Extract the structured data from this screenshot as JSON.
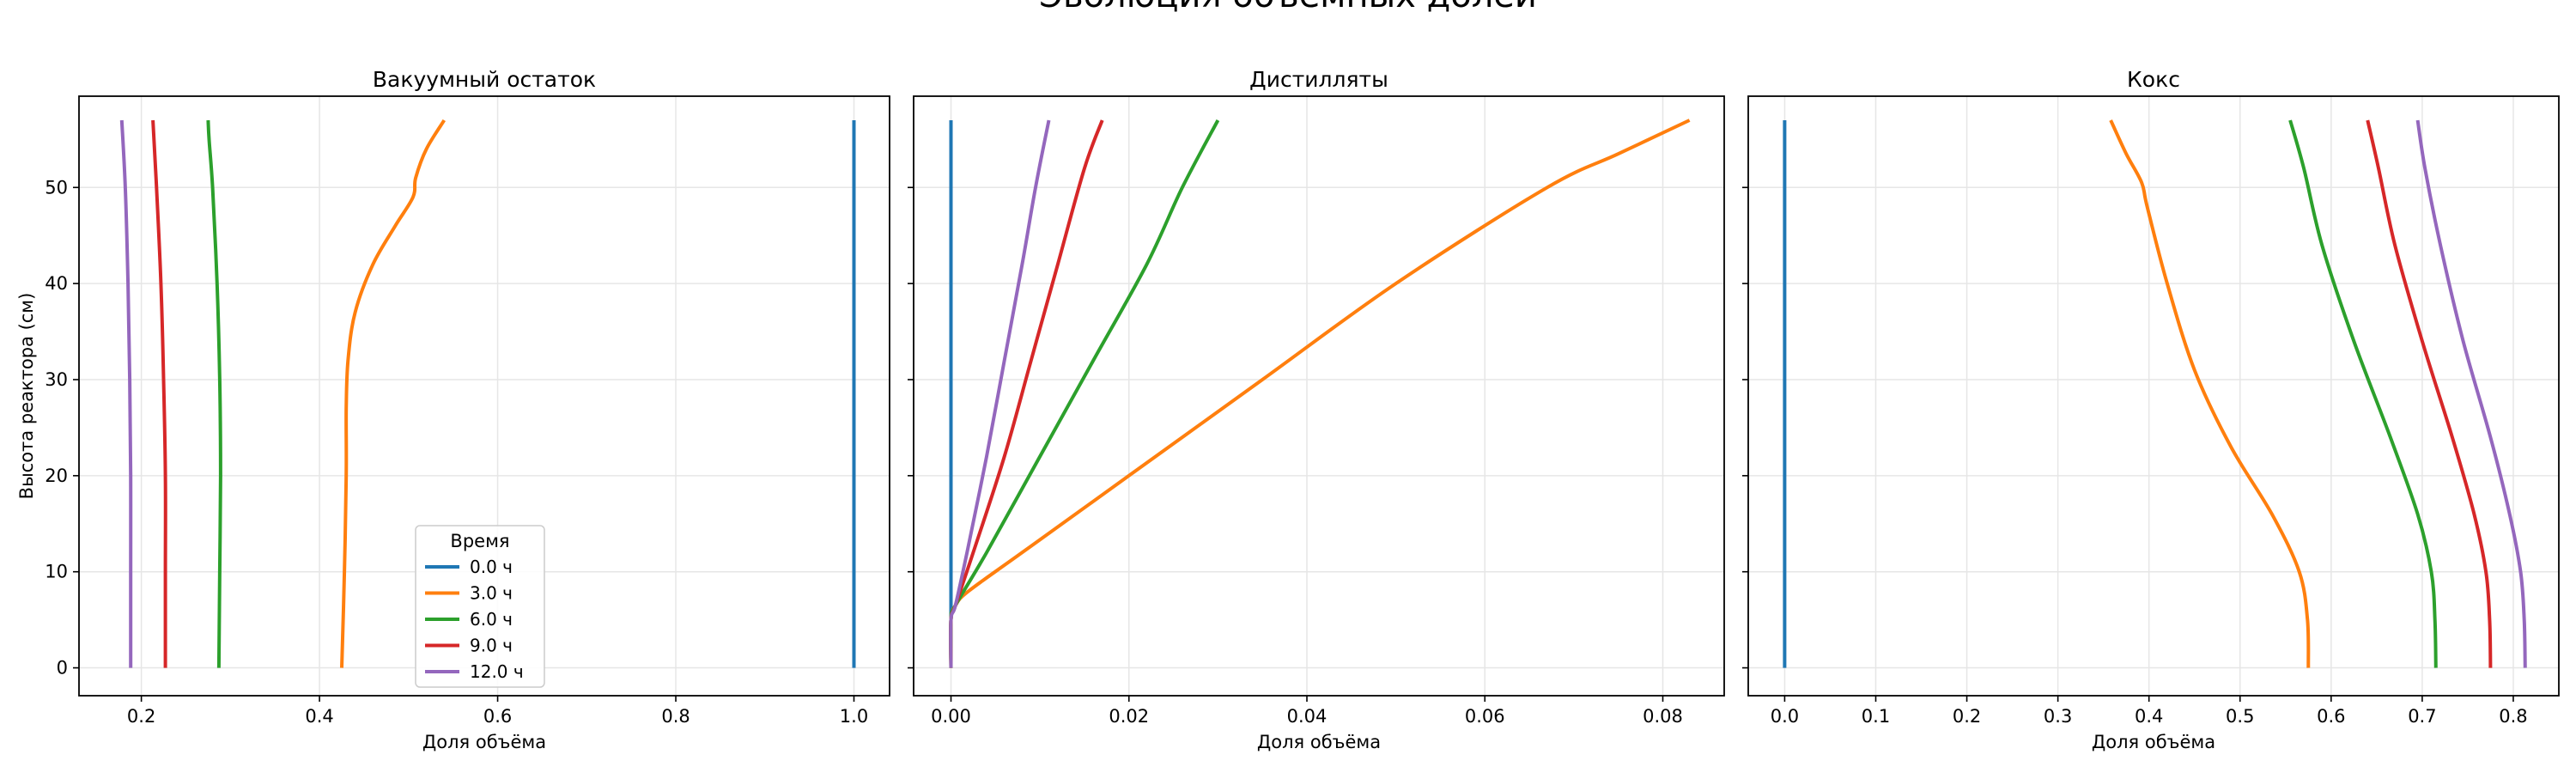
{
  "figure": {
    "title": "Эволюция объёмных долей"
  },
  "legend": {
    "title": "Время",
    "entries": [
      "0.0 ч",
      "3.0 ч",
      "6.0 ч",
      "9.0 ч",
      "12.0 ч"
    ],
    "colors": [
      "#1f77b4",
      "#ff7f0e",
      "#2ca02c",
      "#d62728",
      "#9467bd"
    ],
    "placement": "lower-center of first panel"
  },
  "chart_data": [
    {
      "type": "line",
      "title": "Вакуумный остаток",
      "xlabel": "Доля объёма",
      "ylabel": "Высота реактора (см)",
      "xlim": [
        0.13,
        1.04
      ],
      "ylim": [
        -2.9,
        59.5
      ],
      "xticks": [
        0.2,
        0.4,
        0.6,
        0.8,
        1.0
      ],
      "xtick_labels": [
        "0.2",
        "0.4",
        "0.6",
        "0.8",
        "1.0"
      ],
      "yticks": [
        0,
        10,
        20,
        30,
        40,
        50
      ],
      "ytick_labels": [
        "0",
        "10",
        "20",
        "30",
        "40",
        "50"
      ],
      "grid": true,
      "series": [
        {
          "name": "0.0 ч",
          "x": [
            1.0,
            1.0
          ],
          "y": [
            0,
            57
          ]
        },
        {
          "name": "3.0 ч",
          "x": [
            0.425,
            0.428,
            0.43,
            0.43,
            0.432,
            0.44,
            0.46,
            0.485,
            0.505,
            0.508,
            0.52,
            0.54
          ],
          "y": [
            0,
            10,
            20,
            27,
            32,
            37,
            42,
            46,
            49,
            51,
            54,
            57
          ]
        },
        {
          "name": "6.0 ч",
          "x": [
            0.287,
            0.288,
            0.289,
            0.288,
            0.285,
            0.28,
            0.276,
            0.275
          ],
          "y": [
            0,
            10,
            20,
            30,
            40,
            50,
            55,
            57
          ]
        },
        {
          "name": "9.0 ч",
          "x": [
            0.227,
            0.227,
            0.227,
            0.225,
            0.222,
            0.217,
            0.213
          ],
          "y": [
            0,
            10,
            20,
            30,
            40,
            50,
            57
          ]
        },
        {
          "name": "12.0 ч",
          "x": [
            0.188,
            0.188,
            0.188,
            0.187,
            0.185,
            0.182,
            0.178
          ],
          "y": [
            0,
            10,
            20,
            30,
            40,
            50,
            57
          ]
        }
      ]
    },
    {
      "type": "line",
      "title": "Дистилляты",
      "xlabel": "Доля объёма",
      "ylabel": "",
      "xlim": [
        -0.0042,
        0.0869
      ],
      "ylim": [
        -2.9,
        59.5
      ],
      "xticks": [
        0,
        0.02,
        0.04,
        0.06,
        0.08
      ],
      "xtick_labels": [
        "0.00",
        "0.02",
        "0.04",
        "0.06",
        "0.08"
      ],
      "yticks": [
        0,
        10,
        20,
        30,
        40,
        50
      ],
      "ytick_labels": [],
      "grid": true,
      "series": [
        {
          "name": "0.0 ч",
          "x": [
            0,
            0
          ],
          "y": [
            0,
            57
          ]
        },
        {
          "name": "3.0 ч",
          "x": [
            0,
            0.0,
            0.0005,
            0.002,
            0.008,
            0.02,
            0.035,
            0.05,
            0.067,
            0.075,
            0.083
          ],
          "y": [
            0,
            5,
            6.5,
            8,
            12,
            20,
            30,
            40,
            50,
            53.5,
            57
          ]
        },
        {
          "name": "6.0 ч",
          "x": [
            0,
            0,
            0.0005,
            0.004,
            0.01,
            0.016,
            0.022,
            0.026,
            0.03
          ],
          "y": [
            0,
            5,
            6.5,
            12,
            22,
            32,
            42,
            50,
            57
          ]
        },
        {
          "name": "9.0 ч",
          "x": [
            0,
            0,
            0.0005,
            0.0025,
            0.006,
            0.009,
            0.012,
            0.015,
            0.017
          ],
          "y": [
            0,
            5,
            6.5,
            12,
            22,
            32,
            42,
            52,
            57
          ]
        },
        {
          "name": "12.0 ч",
          "x": [
            0,
            0,
            0.0005,
            0.0018,
            0.004,
            0.006,
            0.008,
            0.0095,
            0.011
          ],
          "y": [
            0,
            5,
            6.5,
            12,
            22,
            32,
            42,
            50,
            57
          ]
        }
      ]
    },
    {
      "type": "line",
      "title": "Кокс",
      "xlabel": "Доля объёма",
      "ylabel": "",
      "xlim": [
        -0.04,
        0.85
      ],
      "ylim": [
        -2.9,
        59.5
      ],
      "xticks": [
        0,
        0.1,
        0.2,
        0.3,
        0.4,
        0.5,
        0.6,
        0.7,
        0.8
      ],
      "xtick_labels": [
        "0.0",
        "0.1",
        "0.2",
        "0.3",
        "0.4",
        "0.5",
        "0.6",
        "0.7",
        "0.8"
      ],
      "yticks": [
        0,
        10,
        20,
        30,
        40,
        50
      ],
      "ytick_labels": [],
      "grid": true,
      "series": [
        {
          "name": "0.0 ч",
          "x": [
            0,
            0
          ],
          "y": [
            0,
            57
          ]
        },
        {
          "name": "3.0 ч",
          "x": [
            0.575,
            0.574,
            0.565,
            0.535,
            0.49,
            0.45,
            0.42,
            0.398,
            0.392,
            0.375,
            0.358
          ],
          "y": [
            0,
            5,
            10,
            16,
            23,
            31,
            40,
            48,
            50.5,
            53.5,
            57
          ]
        },
        {
          "name": "6.0 ч",
          "x": [
            0.715,
            0.714,
            0.71,
            0.695,
            0.665,
            0.625,
            0.59,
            0.57,
            0.555
          ],
          "y": [
            0,
            5,
            10,
            16,
            24,
            34,
            44,
            52,
            57
          ]
        },
        {
          "name": "9.0 ч",
          "x": [
            0.775,
            0.774,
            0.77,
            0.757,
            0.733,
            0.7,
            0.67,
            0.652,
            0.64
          ],
          "y": [
            0,
            5,
            10,
            16,
            24,
            34,
            44,
            52,
            57
          ]
        },
        {
          "name": "12.0 ч",
          "x": [
            0.813,
            0.812,
            0.808,
            0.796,
            0.775,
            0.745,
            0.72,
            0.703,
            0.695
          ],
          "y": [
            0,
            5,
            10,
            16,
            24,
            34,
            44,
            52,
            57
          ]
        }
      ]
    }
  ]
}
